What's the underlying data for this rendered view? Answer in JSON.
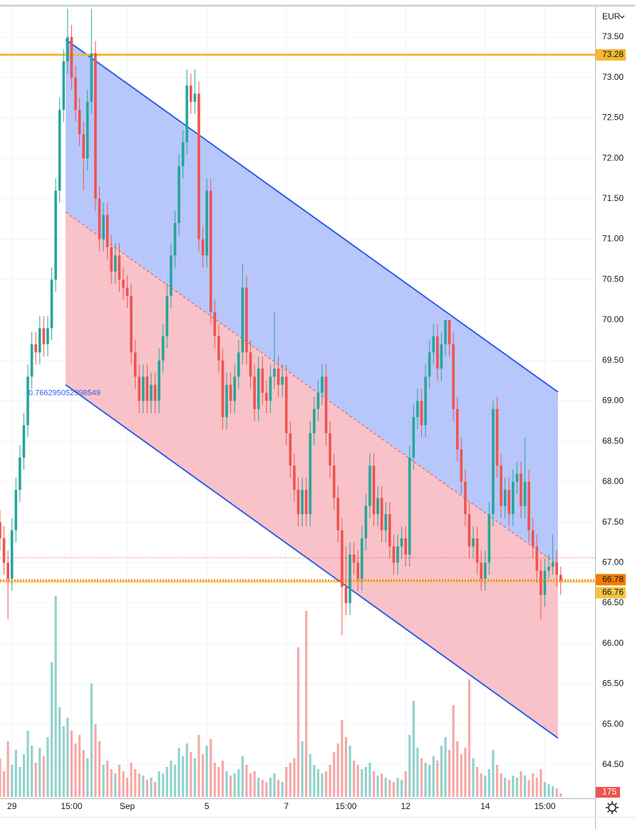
{
  "chart_data": {
    "type": "candlestick",
    "currency": "EUR",
    "ylim": [
      64.085,
      73.87
    ],
    "yticks": [
      {
        "value": 64.5,
        "label": "64.50"
      },
      {
        "value": 65,
        "label": "65.00"
      },
      {
        "value": 65.5,
        "label": "65.50"
      },
      {
        "value": 66,
        "label": "66.00"
      },
      {
        "value": 66.5,
        "label": "66.50"
      },
      {
        "value": 67,
        "label": "67.00"
      },
      {
        "value": 67.5,
        "label": "67.50"
      },
      {
        "value": 68,
        "label": "68.00"
      },
      {
        "value": 68.5,
        "label": "68.50"
      },
      {
        "value": 69,
        "label": "69.00"
      },
      {
        "value": 69.5,
        "label": "69.50"
      },
      {
        "value": 70,
        "label": "70.00"
      },
      {
        "value": 70.5,
        "label": "70.50"
      },
      {
        "value": 71,
        "label": "71.00"
      },
      {
        "value": 71.5,
        "label": "71.50"
      },
      {
        "value": 72,
        "label": "72.00"
      },
      {
        "value": 72.5,
        "label": "72.50"
      },
      {
        "value": 73,
        "label": "73.00"
      },
      {
        "value": 73.5,
        "label": "73.50"
      }
    ],
    "vlim": [
      0,
      10000
    ],
    "grid": true,
    "up_color": "#26a69a",
    "down_color": "#ef5350",
    "categories": [
      null,
      null,
      null,
      "29",
      null,
      null,
      null,
      null,
      null,
      null,
      null,
      null,
      null,
      null,
      null,
      null,
      null,
      null,
      "15:00",
      null,
      null,
      null,
      null,
      null,
      null,
      null,
      null,
      null,
      null,
      null,
      null,
      null,
      "Sep",
      null,
      null,
      null,
      null,
      null,
      null,
      null,
      null,
      null,
      null,
      null,
      null,
      null,
      null,
      null,
      null,
      null,
      null,
      null,
      "5",
      null,
      null,
      null,
      null,
      null,
      null,
      null,
      null,
      null,
      null,
      null,
      null,
      null,
      null,
      null,
      null,
      null,
      null,
      null,
      "7",
      null,
      null,
      null,
      null,
      null,
      null,
      null,
      null,
      null,
      null,
      null,
      null,
      null,
      null,
      "15:00",
      null,
      null,
      null,
      null,
      null,
      null,
      null,
      null,
      null,
      null,
      null,
      null,
      null,
      null,
      "12",
      null,
      null,
      null,
      null,
      null,
      null,
      null,
      null,
      null,
      null,
      null,
      null,
      null,
      null,
      null,
      null,
      null,
      null,
      null,
      "14",
      null,
      null,
      null,
      null,
      null,
      null,
      null,
      null,
      null,
      null,
      null,
      null,
      null,
      null,
      "15:00",
      null,
      null,
      null,
      null
    ],
    "candles": [
      [
        67.5,
        67.65,
        67.15,
        67.3,
        1800
      ],
      [
        67.3,
        67.45,
        66.85,
        67.0,
        1200
      ],
      [
        67.0,
        67.15,
        66.3,
        66.8,
        2600
      ],
      [
        66.8,
        67.55,
        66.65,
        67.4,
        1500
      ],
      [
        67.4,
        68.05,
        67.25,
        67.9,
        2200
      ],
      [
        67.9,
        68.45,
        67.75,
        68.3,
        1400
      ],
      [
        68.3,
        68.85,
        68.15,
        68.7,
        2000
      ],
      [
        68.7,
        69.45,
        68.55,
        69.3,
        3100
      ],
      [
        69.3,
        69.85,
        69.15,
        69.7,
        2400
      ],
      [
        69.7,
        69.85,
        69.45,
        69.6,
        1600
      ],
      [
        69.6,
        70.05,
        69.45,
        69.9,
        2300
      ],
      [
        69.9,
        70.05,
        69.55,
        69.7,
        1900
      ],
      [
        69.7,
        70.05,
        69.55,
        69.9,
        2800
      ],
      [
        69.9,
        70.65,
        69.75,
        70.5,
        6300
      ],
      [
        70.5,
        71.75,
        70.35,
        71.6,
        9400
      ],
      [
        71.6,
        72.75,
        71.45,
        72.6,
        4200
      ],
      [
        72.6,
        73.35,
        72.45,
        73.2,
        3300
      ],
      [
        73.2,
        73.85,
        73.05,
        73.5,
        3700
      ],
      [
        73.5,
        73.65,
        72.85,
        73.0,
        3100
      ],
      [
        73.0,
        73.15,
        72.45,
        72.6,
        2500
      ],
      [
        72.6,
        72.75,
        72.15,
        72.3,
        2900
      ],
      [
        72.3,
        72.45,
        71.6,
        72.0,
        2200
      ],
      [
        72.0,
        72.85,
        71.85,
        72.7,
        1800
      ],
      [
        72.7,
        73.85,
        72.55,
        73.3,
        5300
      ],
      [
        73.3,
        73.45,
        71.35,
        71.5,
        3400
      ],
      [
        71.5,
        71.65,
        70.85,
        71.0,
        2600
      ],
      [
        71.0,
        71.45,
        70.85,
        71.3,
        1500
      ],
      [
        71.3,
        71.45,
        70.75,
        70.9,
        1700
      ],
      [
        70.9,
        71.05,
        70.45,
        70.6,
        1300
      ],
      [
        70.6,
        70.95,
        70.45,
        70.8,
        1100
      ],
      [
        70.8,
        70.95,
        70.35,
        70.5,
        1500
      ],
      [
        70.5,
        70.65,
        70.25,
        70.4,
        1200
      ],
      [
        70.4,
        70.55,
        70.15,
        70.3,
        900
      ],
      [
        70.3,
        70.45,
        69.45,
        69.6,
        1600
      ],
      [
        69.6,
        69.75,
        69.15,
        69.3,
        1300
      ],
      [
        69.3,
        69.45,
        68.85,
        69.0,
        1100
      ],
      [
        69.0,
        69.45,
        68.85,
        69.3,
        1000
      ],
      [
        69.3,
        69.45,
        68.85,
        69.0,
        800
      ],
      [
        69.0,
        69.35,
        68.85,
        69.2,
        900
      ],
      [
        69.2,
        69.35,
        68.85,
        69.0,
        700
      ],
      [
        69.0,
        69.65,
        68.85,
        69.5,
        1200
      ],
      [
        69.5,
        69.95,
        69.35,
        69.8,
        1100
      ],
      [
        69.8,
        70.45,
        69.65,
        70.3,
        1400
      ],
      [
        70.3,
        70.95,
        70.15,
        70.8,
        1700
      ],
      [
        70.8,
        71.35,
        70.65,
        71.2,
        1500
      ],
      [
        71.2,
        72.05,
        71.05,
        71.9,
        2300
      ],
      [
        71.9,
        72.35,
        71.75,
        72.2,
        1900
      ],
      [
        72.2,
        73.1,
        72.05,
        72.9,
        2500
      ],
      [
        72.9,
        73.05,
        72.55,
        72.7,
        2100
      ],
      [
        72.7,
        73.1,
        72.55,
        72.8,
        1800
      ],
      [
        72.8,
        72.95,
        70.85,
        71.0,
        2900
      ],
      [
        71.0,
        71.15,
        70.65,
        70.8,
        2000
      ],
      [
        70.8,
        71.75,
        70.65,
        71.6,
        2400
      ],
      [
        71.6,
        71.75,
        69.95,
        70.1,
        2700
      ],
      [
        70.1,
        70.25,
        69.65,
        69.8,
        1600
      ],
      [
        69.8,
        69.95,
        69.35,
        69.5,
        1400
      ],
      [
        69.5,
        69.65,
        68.65,
        68.8,
        1700
      ],
      [
        68.8,
        69.35,
        68.65,
        69.2,
        1200
      ],
      [
        69.2,
        69.35,
        68.85,
        69.0,
        1000
      ],
      [
        69.0,
        69.45,
        68.85,
        69.3,
        1100
      ],
      [
        69.3,
        69.75,
        69.15,
        69.6,
        1300
      ],
      [
        69.6,
        70.7,
        69.45,
        70.4,
        1900
      ],
      [
        70.4,
        70.55,
        69.45,
        69.6,
        1500
      ],
      [
        69.6,
        69.75,
        69.15,
        69.3,
        1100
      ],
      [
        69.3,
        69.45,
        68.75,
        68.9,
        1200
      ],
      [
        68.9,
        69.55,
        68.75,
        69.4,
        900
      ],
      [
        69.4,
        69.55,
        68.95,
        69.1,
        800
      ],
      [
        69.1,
        69.25,
        68.85,
        69.0,
        700
      ],
      [
        69.0,
        69.45,
        68.85,
        69.3,
        900
      ],
      [
        69.3,
        70.1,
        69.15,
        69.4,
        1100
      ],
      [
        69.4,
        69.55,
        69.05,
        69.2,
        800
      ],
      [
        69.2,
        69.45,
        69.05,
        69.3,
        700
      ],
      [
        69.3,
        69.45,
        68.45,
        68.6,
        1400
      ],
      [
        68.6,
        68.75,
        68.05,
        68.2,
        1600
      ],
      [
        68.2,
        68.35,
        67.75,
        67.9,
        1800
      ],
      [
        67.9,
        68.05,
        67.45,
        67.6,
        7000
      ],
      [
        67.6,
        68.05,
        67.45,
        67.9,
        2600
      ],
      [
        67.9,
        68.05,
        67.45,
        67.6,
        8700
      ],
      [
        67.6,
        68.75,
        67.45,
        68.6,
        2000
      ],
      [
        68.6,
        69.05,
        68.45,
        68.9,
        1500
      ],
      [
        68.9,
        69.25,
        68.75,
        69.1,
        1300
      ],
      [
        69.1,
        69.45,
        68.95,
        69.3,
        1100
      ],
      [
        69.3,
        69.45,
        68.45,
        68.6,
        1200
      ],
      [
        68.6,
        68.75,
        68.05,
        68.2,
        1500
      ],
      [
        68.2,
        68.35,
        67.65,
        67.8,
        2100
      ],
      [
        67.8,
        67.95,
        67.25,
        67.4,
        2500
      ],
      [
        67.4,
        67.55,
        66.1,
        66.7,
        3600
      ],
      [
        66.7,
        67.2,
        66.35,
        66.5,
        2800
      ],
      [
        66.5,
        67.25,
        66.35,
        67.1,
        2400
      ],
      [
        67.1,
        67.25,
        66.85,
        67.0,
        1700
      ],
      [
        67.0,
        67.15,
        66.65,
        66.8,
        1500
      ],
      [
        66.8,
        67.45,
        66.65,
        67.3,
        1300
      ],
      [
        67.3,
        67.85,
        67.15,
        67.7,
        1400
      ],
      [
        67.7,
        68.35,
        67.55,
        68.2,
        1600
      ],
      [
        68.2,
        68.35,
        67.45,
        67.6,
        1200
      ],
      [
        67.6,
        67.95,
        67.45,
        67.8,
        1000
      ],
      [
        67.8,
        67.95,
        67.25,
        67.4,
        1100
      ],
      [
        67.4,
        67.75,
        67.25,
        67.6,
        900
      ],
      [
        67.6,
        67.75,
        67.05,
        67.2,
        800
      ],
      [
        67.2,
        67.35,
        66.85,
        67.0,
        700
      ],
      [
        67.0,
        67.35,
        66.85,
        67.2,
        900
      ],
      [
        67.2,
        67.45,
        67.05,
        67.3,
        800
      ],
      [
        67.3,
        67.45,
        66.95,
        67.1,
        1200
      ],
      [
        67.1,
        68.45,
        66.95,
        68.3,
        2900
      ],
      [
        68.3,
        68.95,
        68.15,
        68.8,
        4500
      ],
      [
        68.8,
        69.15,
        68.65,
        69.0,
        2300
      ],
      [
        69.0,
        69.15,
        68.55,
        68.7,
        1800
      ],
      [
        68.7,
        69.45,
        68.55,
        69.3,
        1600
      ],
      [
        69.3,
        69.75,
        69.15,
        69.6,
        1500
      ],
      [
        69.6,
        69.95,
        69.45,
        69.8,
        1900
      ],
      [
        69.8,
        69.95,
        69.25,
        69.4,
        1700
      ],
      [
        69.4,
        69.85,
        69.25,
        69.7,
        2400
      ],
      [
        69.7,
        70.0,
        69.55,
        70.0,
        2800
      ],
      [
        70.0,
        70.0,
        69.55,
        69.7,
        2200
      ],
      [
        69.7,
        69.85,
        68.75,
        68.9,
        4300
      ],
      [
        68.9,
        69.05,
        68.25,
        68.4,
        2600
      ],
      [
        68.4,
        68.55,
        67.85,
        68.0,
        2000
      ],
      [
        68.0,
        68.15,
        67.45,
        67.6,
        2300
      ],
      [
        67.6,
        67.75,
        67.05,
        67.2,
        5500
      ],
      [
        67.2,
        67.45,
        67.05,
        67.3,
        1800
      ],
      [
        67.3,
        67.45,
        66.85,
        67.0,
        1400
      ],
      [
        67.0,
        67.15,
        66.65,
        66.8,
        1100
      ],
      [
        66.8,
        67.15,
        66.65,
        67.0,
        1000
      ],
      [
        67.0,
        67.75,
        66.85,
        67.6,
        1300
      ],
      [
        67.6,
        69.0,
        67.45,
        68.9,
        2200
      ],
      [
        68.9,
        69.05,
        68.05,
        68.2,
        1500
      ],
      [
        68.2,
        68.35,
        67.55,
        67.7,
        1100
      ],
      [
        67.7,
        68.05,
        67.55,
        67.9,
        900
      ],
      [
        67.9,
        68.05,
        67.45,
        67.6,
        800
      ],
      [
        67.6,
        68.15,
        67.45,
        68.0,
        1000
      ],
      [
        68.0,
        68.25,
        67.85,
        68.1,
        900
      ],
      [
        68.1,
        68.25,
        67.55,
        67.7,
        1200
      ],
      [
        67.7,
        68.55,
        67.55,
        68.0,
        1000
      ],
      [
        68.0,
        68.15,
        67.25,
        67.4,
        800
      ],
      [
        67.4,
        67.55,
        67.05,
        67.2,
        1100
      ],
      [
        67.2,
        67.35,
        66.75,
        66.9,
        900
      ],
      [
        66.9,
        67.05,
        66.3,
        66.6,
        1300
      ],
      [
        66.6,
        67.05,
        66.45,
        66.9,
        700
      ],
      [
        66.9,
        67.1,
        66.8,
        66.95,
        600
      ],
      [
        66.95,
        67.35,
        66.85,
        67.0,
        500
      ],
      [
        67.0,
        67.15,
        66.7,
        66.85,
        400
      ],
      [
        66.85,
        66.95,
        66.6,
        66.78,
        175
      ]
    ],
    "channel": {
      "x": [
        16.5,
        140.3
      ],
      "upper": [
        73.47,
        69.11
      ],
      "lower": [
        69.2,
        64.83
      ],
      "label": "0.766295052998549",
      "line_color": "#2f5fe8",
      "upper_fill": "#b7c6fb",
      "lower_fill": "#f8c2c8",
      "mid_color": "#ef5350"
    },
    "price_lines": [
      {
        "value": 73.28,
        "color": "#f5b82e",
        "style": "solid"
      },
      {
        "value": 66.76,
        "color": "#f5c542",
        "style": "solid"
      },
      {
        "value": 67.06,
        "color": "#ef5350",
        "style": "dotted"
      }
    ],
    "last_color": "#f57c00"
  }
}
